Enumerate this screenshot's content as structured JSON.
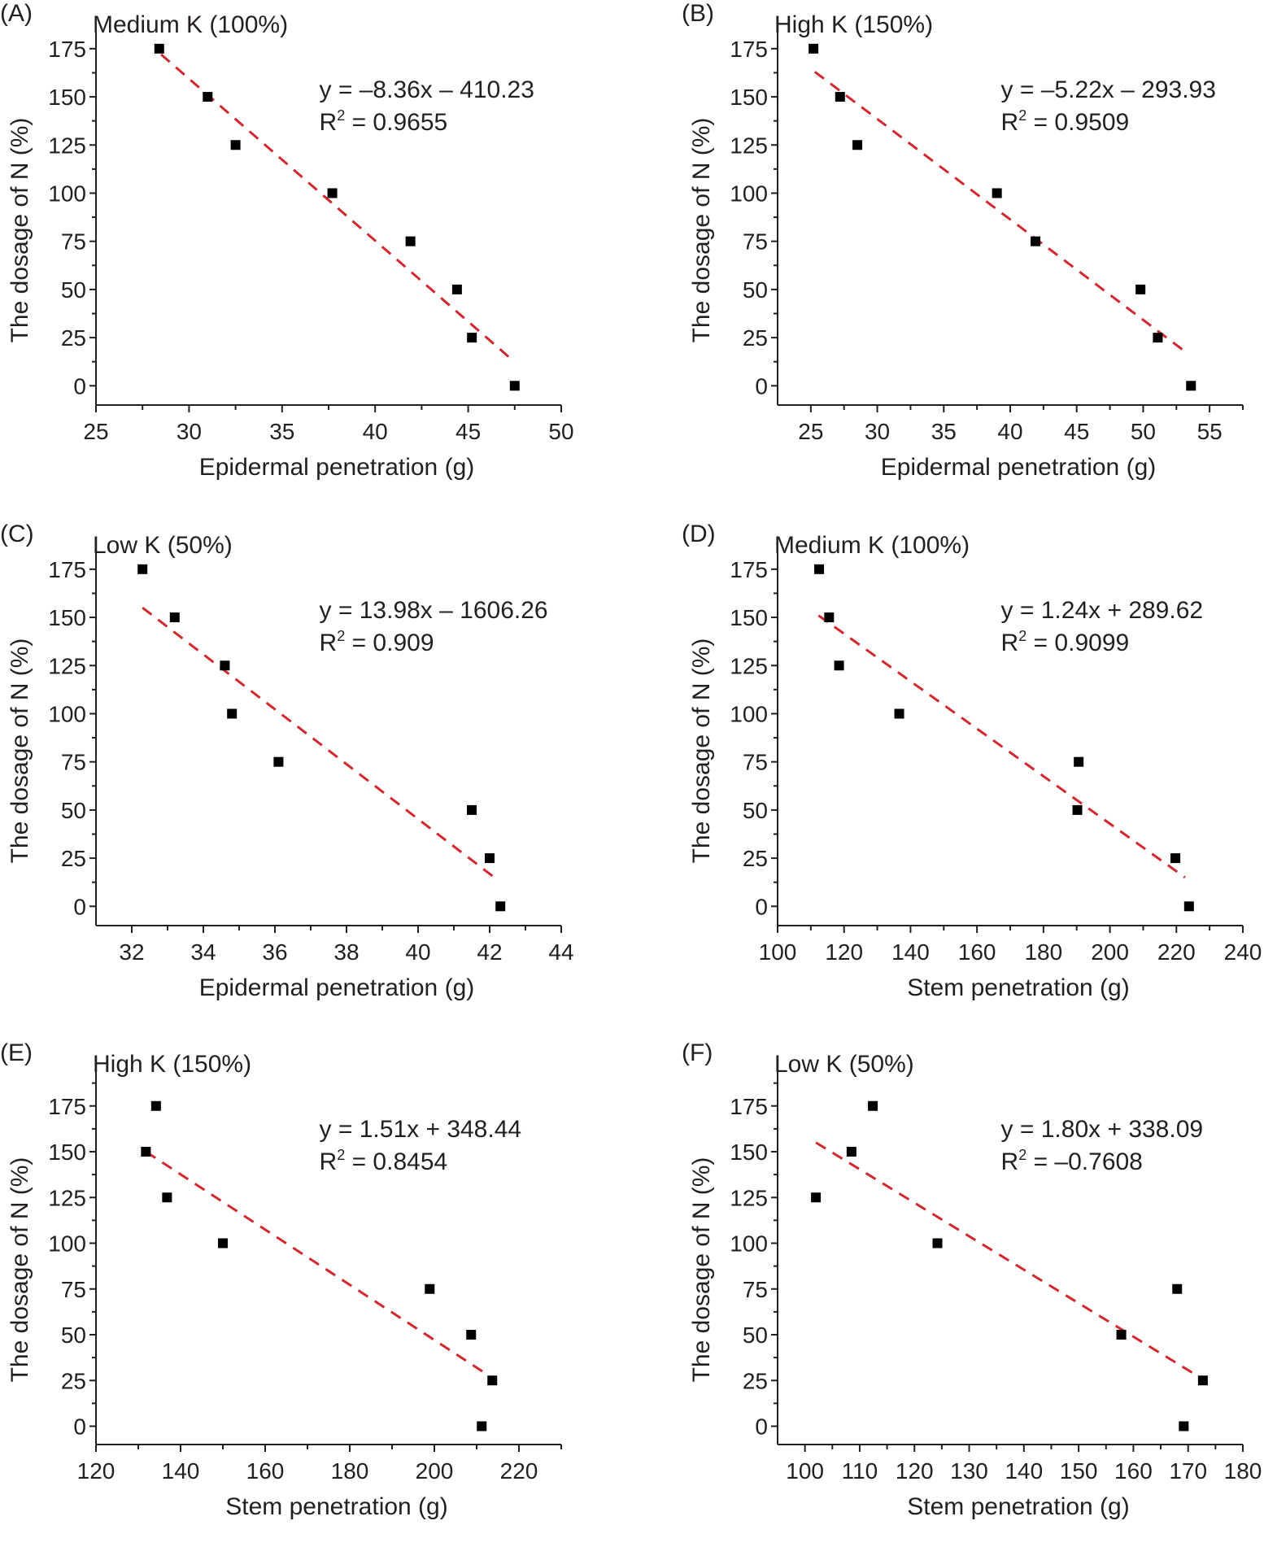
{
  "figure": {
    "y_axis_label": "The dosage of N (%)"
  },
  "chart_data": [
    {
      "id": "A",
      "panel_label": "(A)",
      "type": "scatter",
      "title": "Medium K (100%)",
      "xlabel": "Epidermal penetration (g)",
      "ylabel": "The dosage of N (%)",
      "xlim": [
        25,
        50
      ],
      "ylim": [
        -10,
        180
      ],
      "xticks": [
        25,
        30,
        35,
        40,
        45,
        50
      ],
      "yticks": [
        0,
        25,
        50,
        75,
        100,
        125,
        150,
        175
      ],
      "grid": false,
      "points": [
        {
          "x": 28.4,
          "y": 175
        },
        {
          "x": 31.0,
          "y": 150
        },
        {
          "x": 32.5,
          "y": 125
        },
        {
          "x": 37.7,
          "y": 100
        },
        {
          "x": 41.9,
          "y": 75
        },
        {
          "x": 44.4,
          "y": 50
        },
        {
          "x": 45.2,
          "y": 25
        },
        {
          "x": 47.5,
          "y": 0
        }
      ],
      "trendline": {
        "x1": 28.5,
        "y1": 172,
        "x2": 47.3,
        "y2": 14,
        "style": "dashed",
        "color": "#d0282e"
      },
      "equation": "y = –8.36x – 410.23",
      "r2_label": "R",
      "r2_sup": "2",
      "r2_value": " = 0.9655"
    },
    {
      "id": "B",
      "panel_label": "(B)",
      "type": "scatter",
      "title": "High K (150%)",
      "xlabel": "Epidermal penetration (g)",
      "ylabel": "The dosage of N (%)",
      "xlim": [
        22.5,
        57.5
      ],
      "ylim": [
        -10,
        180
      ],
      "xticks": [
        25,
        30,
        35,
        40,
        45,
        50,
        55
      ],
      "yticks": [
        0,
        25,
        50,
        75,
        100,
        125,
        150,
        175
      ],
      "grid": false,
      "points": [
        {
          "x": 25.2,
          "y": 175
        },
        {
          "x": 27.2,
          "y": 150
        },
        {
          "x": 28.5,
          "y": 125
        },
        {
          "x": 39.0,
          "y": 100
        },
        {
          "x": 41.9,
          "y": 75
        },
        {
          "x": 49.8,
          "y": 50
        },
        {
          "x": 51.1,
          "y": 25
        },
        {
          "x": 53.6,
          "y": 0
        }
      ],
      "trendline": {
        "x1": 25.3,
        "y1": 163,
        "x2": 53.3,
        "y2": 17,
        "style": "dashed",
        "color": "#d0282e"
      },
      "equation": "y = –5.22x – 293.93",
      "r2_label": "R",
      "r2_sup": "2",
      "r2_value": " = 0.9509"
    },
    {
      "id": "C",
      "panel_label": "(C)",
      "type": "scatter",
      "title": "Low K (50%)",
      "xlabel": "Epidermal penetration (g)",
      "ylabel": "The dosage of N (%)",
      "xlim": [
        31,
        44
      ],
      "ylim": [
        -10,
        180
      ],
      "xticks": [
        32,
        34,
        36,
        38,
        40,
        42,
        44
      ],
      "yticks": [
        0,
        25,
        50,
        75,
        100,
        125,
        150,
        175
      ],
      "grid": false,
      "points": [
        {
          "x": 32.3,
          "y": 175
        },
        {
          "x": 33.2,
          "y": 150
        },
        {
          "x": 34.6,
          "y": 125
        },
        {
          "x": 34.8,
          "y": 100
        },
        {
          "x": 36.1,
          "y": 75
        },
        {
          "x": 41.5,
          "y": 50
        },
        {
          "x": 42.0,
          "y": 25
        },
        {
          "x": 42.3,
          "y": 0
        }
      ],
      "trendline": {
        "x1": 32.3,
        "y1": 155,
        "x2": 42.2,
        "y2": 14,
        "style": "dashed",
        "color": "#d0282e"
      },
      "equation": "y = 13.98x – 1606.26",
      "r2_label": "R",
      "r2_sup": "2",
      "r2_value": " = 0.909"
    },
    {
      "id": "D",
      "panel_label": "(D)",
      "type": "scatter",
      "title": "Medium K (100%)",
      "xlabel": "Stem penetration (g)",
      "ylabel": "The dosage of N (%)",
      "xlim": [
        100,
        240
      ],
      "ylim": [
        -10,
        180
      ],
      "xticks": [
        100,
        120,
        140,
        160,
        180,
        200,
        220,
        240
      ],
      "yticks": [
        0,
        25,
        50,
        75,
        100,
        125,
        150,
        175
      ],
      "grid": false,
      "points": [
        {
          "x": 112.5,
          "y": 175
        },
        {
          "x": 115.5,
          "y": 150
        },
        {
          "x": 118.5,
          "y": 125
        },
        {
          "x": 136.6,
          "y": 100
        },
        {
          "x": 190.6,
          "y": 75
        },
        {
          "x": 190.2,
          "y": 50
        },
        {
          "x": 219.7,
          "y": 25
        },
        {
          "x": 223.8,
          "y": 0
        }
      ],
      "trendline": {
        "x1": 112.3,
        "y1": 151,
        "x2": 222.6,
        "y2": 15,
        "style": "dashed",
        "color": "#d0282e"
      },
      "equation": "y = 1.24x + 289.62",
      "r2_label": "R",
      "r2_sup": "2",
      "r2_value": " = 0.9099"
    },
    {
      "id": "E",
      "panel_label": "(E)",
      "type": "scatter",
      "title": "High K (150%)",
      "xlabel": "Stem penetration (g)",
      "ylabel": "The dosage of N (%)",
      "xlim": [
        120,
        230
      ],
      "ylim": [
        -10,
        190
      ],
      "xticks": [
        120,
        140,
        160,
        180,
        200,
        220
      ],
      "yticks": [
        0,
        25,
        50,
        75,
        100,
        125,
        150,
        175
      ],
      "grid": false,
      "points": [
        {
          "x": 134.2,
          "y": 175
        },
        {
          "x": 131.8,
          "y": 150
        },
        {
          "x": 136.8,
          "y": 125
        },
        {
          "x": 150.0,
          "y": 100
        },
        {
          "x": 198.9,
          "y": 75
        },
        {
          "x": 208.7,
          "y": 50
        },
        {
          "x": 213.7,
          "y": 25
        },
        {
          "x": 211.2,
          "y": 0
        }
      ],
      "trendline": {
        "x1": 131.8,
        "y1": 150,
        "x2": 212.0,
        "y2": 29,
        "style": "dashed",
        "color": "#d0282e"
      },
      "equation": "y = 1.51x + 348.44",
      "r2_label": "R",
      "r2_sup": "2",
      "r2_value": " = 0.8454"
    },
    {
      "id": "F",
      "panel_label": "(F)",
      "type": "scatter",
      "title": "Low K (50%)",
      "xlabel": "Stem penetration (g)",
      "ylabel": "The dosage of N (%)",
      "xlim": [
        95,
        180
      ],
      "ylim": [
        -10,
        190
      ],
      "xticks": [
        100,
        110,
        120,
        130,
        140,
        150,
        160,
        170,
        180
      ],
      "yticks": [
        0,
        25,
        50,
        75,
        100,
        125,
        150,
        175
      ],
      "grid": false,
      "points": [
        {
          "x": 102.0,
          "y": 125
        },
        {
          "x": 108.5,
          "y": 150
        },
        {
          "x": 112.4,
          "y": 175
        },
        {
          "x": 124.2,
          "y": 100
        },
        {
          "x": 157.8,
          "y": 50
        },
        {
          "x": 168.0,
          "y": 75
        },
        {
          "x": 172.7,
          "y": 25
        },
        {
          "x": 169.2,
          "y": 0
        }
      ],
      "trendline": {
        "x1": 102.0,
        "y1": 155,
        "x2": 172.0,
        "y2": 27,
        "style": "dashed",
        "color": "#d0282e"
      },
      "equation": "y = 1.80x + 338.09",
      "r2_label": "R",
      "r2_sup": "2",
      "r2_value": " = –0.7608"
    }
  ]
}
